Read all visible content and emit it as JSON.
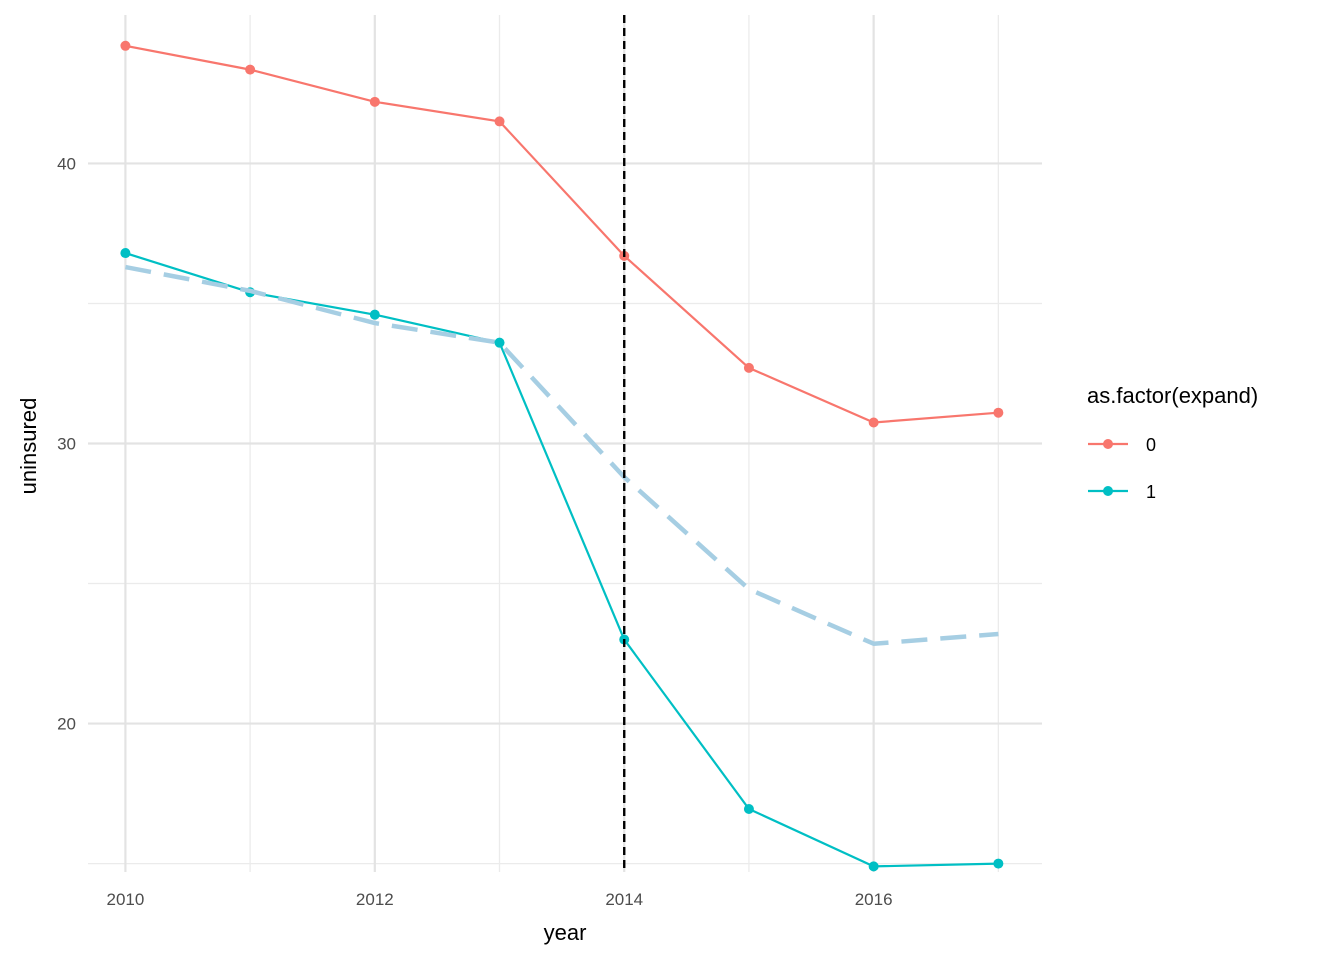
{
  "chart_data": {
    "type": "line",
    "title": "",
    "xlabel": "year",
    "ylabel": "uninsured",
    "x": [
      2010,
      2011,
      2012,
      2013,
      2014,
      2015,
      2016,
      2017
    ],
    "xlim": [
      2009.7,
      2017.35
    ],
    "ylim": [
      14.7,
      45.3
    ],
    "x_ticks": [
      2010,
      2012,
      2014,
      2016
    ],
    "x_tick_labels": [
      "2010",
      "2012",
      "2014",
      "2016"
    ],
    "y_ticks": [
      20,
      30,
      40
    ],
    "y_tick_labels": [
      "20",
      "30",
      "40"
    ],
    "y_minor_ticks": [
      15,
      25,
      35
    ],
    "grid": true,
    "legend": {
      "title": "as.factor(expand)",
      "position": "right"
    },
    "series": [
      {
        "name": "0",
        "color": "#F8766D",
        "style": "solid-with-points",
        "values": [
          44.2,
          43.35,
          42.2,
          41.5,
          36.7,
          32.7,
          30.75,
          31.1
        ]
      },
      {
        "name": "1",
        "color": "#00BFC4",
        "style": "solid-with-points",
        "values": [
          36.8,
          35.4,
          34.6,
          33.6,
          23.0,
          16.95,
          14.9,
          15.0
        ]
      },
      {
        "name": "",
        "color": "#A6CEE3",
        "style": "dashed",
        "in_legend": false,
        "values": [
          36.3,
          35.45,
          34.3,
          33.6,
          28.8,
          24.8,
          22.85,
          23.2
        ]
      }
    ],
    "reference_line": {
      "type": "vertical",
      "x": 2014,
      "color": "#000000",
      "style": "dashed"
    }
  }
}
